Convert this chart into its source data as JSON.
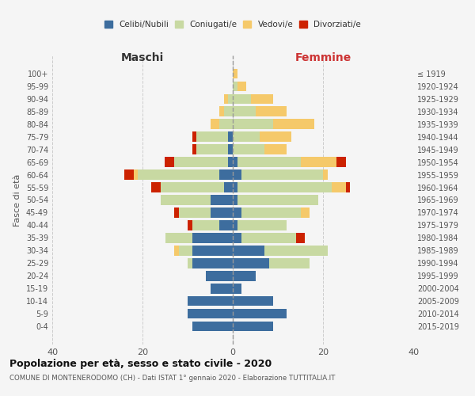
{
  "age_groups": [
    "0-4",
    "5-9",
    "10-14",
    "15-19",
    "20-24",
    "25-29",
    "30-34",
    "35-39",
    "40-44",
    "45-49",
    "50-54",
    "55-59",
    "60-64",
    "65-69",
    "70-74",
    "75-79",
    "80-84",
    "85-89",
    "90-94",
    "95-99",
    "100+"
  ],
  "birth_years": [
    "2015-2019",
    "2010-2014",
    "2005-2009",
    "2000-2004",
    "1995-1999",
    "1990-1994",
    "1985-1989",
    "1980-1984",
    "1975-1979",
    "1970-1974",
    "1965-1969",
    "1960-1964",
    "1955-1959",
    "1950-1954",
    "1945-1949",
    "1940-1944",
    "1935-1939",
    "1930-1934",
    "1925-1929",
    "1920-1924",
    "≤ 1919"
  ],
  "male": {
    "celibe": [
      9,
      10,
      10,
      5,
      6,
      9,
      9,
      9,
      3,
      5,
      5,
      2,
      3,
      1,
      1,
      1,
      0,
      0,
      0,
      0,
      0
    ],
    "coniugato": [
      0,
      0,
      0,
      0,
      0,
      1,
      3,
      6,
      6,
      7,
      11,
      14,
      18,
      12,
      7,
      7,
      3,
      2,
      1,
      0,
      0
    ],
    "vedovo": [
      0,
      0,
      0,
      0,
      0,
      0,
      1,
      0,
      0,
      0,
      0,
      0,
      1,
      0,
      0,
      0,
      2,
      1,
      1,
      0,
      0
    ],
    "divorziato": [
      0,
      0,
      0,
      0,
      0,
      0,
      0,
      0,
      1,
      1,
      0,
      2,
      2,
      2,
      1,
      1,
      0,
      0,
      0,
      0,
      0
    ]
  },
  "female": {
    "nubile": [
      9,
      12,
      9,
      2,
      5,
      8,
      7,
      2,
      1,
      2,
      1,
      1,
      2,
      1,
      0,
      0,
      0,
      0,
      0,
      0,
      0
    ],
    "coniugata": [
      0,
      0,
      0,
      0,
      0,
      9,
      14,
      12,
      11,
      13,
      18,
      21,
      18,
      14,
      7,
      6,
      9,
      5,
      4,
      1,
      0
    ],
    "vedova": [
      0,
      0,
      0,
      0,
      0,
      0,
      0,
      0,
      0,
      2,
      0,
      3,
      1,
      8,
      5,
      7,
      9,
      7,
      5,
      2,
      1
    ],
    "divorziata": [
      0,
      0,
      0,
      0,
      0,
      0,
      0,
      2,
      0,
      0,
      0,
      1,
      0,
      2,
      0,
      0,
      0,
      0,
      0,
      0,
      0
    ]
  },
  "colors": {
    "celibe_nubile": "#3d6d9e",
    "coniugato_coniugata": "#c8d9a2",
    "vedovo_vedova": "#f5c96a",
    "divorziato_divorziata": "#cc2200"
  },
  "xlim": 40,
  "title": "Popolazione per età, sesso e stato civile - 2020",
  "subtitle": "COMUNE DI MONTENERODOMO (CH) - Dati ISTAT 1° gennaio 2020 - Elaborazione TUTTITALIA.IT",
  "ylabel_left": "Fasce di età",
  "xlabel_left": "Maschi",
  "xlabel_right": "Femmine",
  "bg_color": "#f5f5f5",
  "grid_color": "#cccccc"
}
